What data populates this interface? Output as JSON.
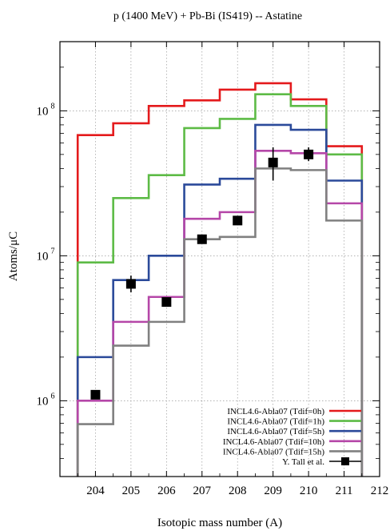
{
  "chart_data": {
    "type": "line",
    "title": "p (1400 MeV) + Pb-Bi (IS419) -- Astatine",
    "xlabel": "Isotopic mass number (A)",
    "ylabel": "Atoms/μC",
    "xlim": [
      203,
      212
    ],
    "ylim": [
      300000,
      300000000
    ],
    "y_scale": "log",
    "grid": true,
    "legend_position": "bottom-right",
    "x_ticks": [
      204,
      205,
      206,
      207,
      208,
      209,
      210,
      211,
      212
    ],
    "x_tick_labels": [
      "204",
      "205",
      "206",
      "207",
      "208",
      "209",
      "210",
      "211",
      "212"
    ],
    "y_ticks": [
      1000000,
      10000000,
      100000000
    ],
    "y_tick_labels": [
      {
        "base": "10",
        "exp": "6"
      },
      {
        "base": "10",
        "exp": "7"
      },
      {
        "base": "10",
        "exp": "8"
      }
    ],
    "x": [
      204,
      205,
      206,
      207,
      208,
      209,
      210,
      211
    ],
    "series": [
      {
        "name": "INCL4.6-Abla07 (Tdif=0h)",
        "color": "#e41a1c",
        "style": "step",
        "values": [
          68000000,
          82000000,
          108000000,
          118000000,
          140000000,
          155000000,
          120000000,
          57000000
        ]
      },
      {
        "name": "INCL4.6-Abla07 (Tdif=1h)",
        "color": "#5dbb46",
        "style": "step",
        "values": [
          9000000,
          25000000,
          36000000,
          76000000,
          88000000,
          130000000,
          108000000,
          50000000
        ]
      },
      {
        "name": "INCL4.6-Abla07 (Tdif=5h)",
        "color": "#2b4a9a",
        "style": "step",
        "values": [
          2000000,
          6800000,
          10000000,
          31000000,
          34000000,
          80000000,
          74000000,
          33000000
        ]
      },
      {
        "name": "INCL4.6-Abla07 (Tdif=10h)",
        "color": "#b547a8",
        "style": "step",
        "values": [
          1000000,
          3500000,
          5200000,
          18000000,
          20000000,
          53000000,
          51000000,
          23000000
        ]
      },
      {
        "name": "INCL4.6-Abla07 (Tdif=15h)",
        "color": "#808080",
        "style": "step",
        "values": [
          690000,
          2400000,
          3500000,
          13000000,
          13500000,
          40000000,
          39000000,
          17500000
        ]
      },
      {
        "name": "Y. Tall et al.",
        "color": "#000000",
        "style": "points",
        "points": [
          {
            "x": 204,
            "y": 1100000
          },
          {
            "x": 205,
            "y": 6400000,
            "err_low": 5600000,
            "err_high": 7300000
          },
          {
            "x": 206,
            "y": 4800000
          },
          {
            "x": 207,
            "y": 13000000
          },
          {
            "x": 208,
            "y": 17500000
          },
          {
            "x": 209,
            "y": 44000000,
            "err_low": 33000000,
            "err_high": 56000000
          },
          {
            "x": 210,
            "y": 50000000,
            "err_low": 45000000,
            "err_high": 56000000
          }
        ]
      }
    ]
  }
}
